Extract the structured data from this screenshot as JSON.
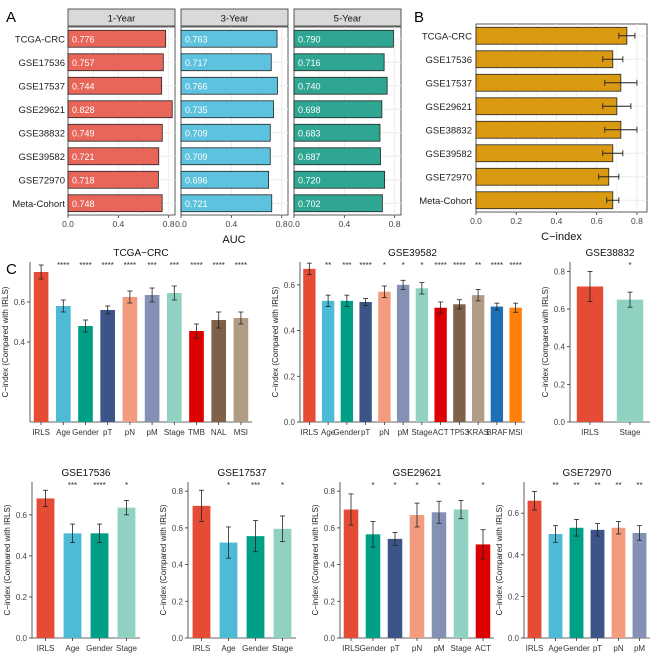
{
  "panels": {
    "A": "A",
    "B": "B",
    "C": "C"
  },
  "colors": {
    "a_1y": "#E8655A",
    "a_3y": "#5DC2DD",
    "a_5y": "#2EA692",
    "b_bar": "#D99A12",
    "c_sig": "#333333"
  },
  "chart_data": [
    {
      "id": "A",
      "type": "bar",
      "orientation": "horizontal",
      "categories": [
        "TCGA-CRC",
        "GSE17536",
        "GSE17537",
        "GSE29621",
        "GSE38832",
        "GSE39582",
        "GSE72970",
        "Meta-Cohort"
      ],
      "xlabel": "AUC",
      "xlim": [
        0,
        0.85
      ],
      "xticks": [
        "0.0",
        "0.4",
        "0.8"
      ],
      "grid": true,
      "facets": [
        {
          "name": "1-Year",
          "values": [
            "0.776",
            "0.757",
            "0.744",
            "0.828",
            "0.749",
            "0.721",
            "0.718",
            "0.748"
          ]
        },
        {
          "name": "3-Year",
          "values": [
            "0.763",
            "0.717",
            "0.766",
            "0.735",
            "0.709",
            "0.709",
            "0.696",
            "0.721"
          ]
        },
        {
          "name": "5-Year",
          "values": [
            "0.790",
            "0.716",
            "0.740",
            "0.698",
            "0.683",
            "0.687",
            "0.720",
            "0.702"
          ]
        }
      ]
    },
    {
      "id": "B",
      "type": "bar",
      "orientation": "horizontal",
      "categories": [
        "TCGA-CRC",
        "GSE17536",
        "GSE17537",
        "GSE29621",
        "GSE38832",
        "GSE39582",
        "GSE72970",
        "Meta-Cohort"
      ],
      "values": [
        0.75,
        0.68,
        0.72,
        0.7,
        0.72,
        0.68,
        0.66,
        0.68
      ],
      "errors": [
        0.04,
        0.05,
        0.08,
        0.07,
        0.08,
        0.05,
        0.05,
        0.03
      ],
      "xlabel": "C−index",
      "xlim": [
        0,
        0.85
      ],
      "xticks": [
        "0.0",
        "0.2",
        "0.4",
        "0.6",
        "0.8"
      ],
      "grid": true
    },
    {
      "id": "C",
      "type": "bar",
      "ylabel": "C−index (Compared with IRLS)",
      "palette": {
        "IRLS": "#E64B35",
        "Age": "#4DBBD5",
        "Gender": "#00A087",
        "pT": "#3C5488",
        "pN": "#F39B7F",
        "pM": "#8491B4",
        "Stage": "#91D1C2",
        "TMB": "#DC0000",
        "NAL": "#7E6148",
        "MSI": "#B09C85",
        "ACT": "#DC0000",
        "TP53": "#7E6148",
        "KRAS": "#B09C85",
        "BRAF": "#1F6FB4"
      },
      "msi_alt_color": "#FF7F0E",
      "plots": [
        {
          "title": "TCGA−CRC",
          "ylim": [
            0,
            0.8
          ],
          "yticks": [
            "0.4",
            "0.6"
          ],
          "categories": [
            "IRLS",
            "Age",
            "Gender",
            "pT",
            "pN",
            "pM",
            "Stage",
            "TMB",
            "NAL",
            "MSI"
          ],
          "values": [
            0.75,
            0.58,
            0.48,
            0.56,
            0.625,
            0.635,
            0.645,
            0.455,
            0.51,
            0.52
          ],
          "errors": [
            0.035,
            0.03,
            0.03,
            0.02,
            0.03,
            0.035,
            0.035,
            0.035,
            0.04,
            0.03
          ],
          "sig": [
            "",
            "****",
            "****",
            "****",
            "****",
            "***",
            "***",
            "****",
            "****",
            "****"
          ]
        },
        {
          "title": "GSE39582",
          "ylim": [
            0,
            0.7
          ],
          "yticks": [
            "0.0",
            "0.2",
            "0.4",
            "0.6"
          ],
          "categories": [
            "IRLS",
            "Age",
            "Gender",
            "pT",
            "pN",
            "pM",
            "Stage",
            "ACT",
            "TP53",
            "KRAS",
            "BRAF",
            "MSI"
          ],
          "values": [
            0.67,
            0.53,
            0.53,
            0.525,
            0.57,
            0.6,
            0.585,
            0.5,
            0.515,
            0.555,
            0.505,
            0.5
          ],
          "errors": [
            0.025,
            0.025,
            0.025,
            0.015,
            0.025,
            0.02,
            0.025,
            0.025,
            0.02,
            0.025,
            0.015,
            0.02
          ],
          "sig": [
            "",
            "**",
            "***",
            "****",
            "*",
            "*",
            "*",
            "****",
            "****",
            "**",
            "****",
            "****"
          ]
        },
        {
          "title": "GSE38832",
          "ylim": [
            0,
            0.85
          ],
          "yticks": [
            "0.0",
            "0.2",
            "0.4",
            "0.6",
            "0.8"
          ],
          "categories": [
            "IRLS",
            "Stage"
          ],
          "values": [
            0.72,
            0.65
          ],
          "errors": [
            0.08,
            0.04
          ],
          "sig": [
            "",
            "*"
          ]
        },
        {
          "title": "GSE17536",
          "ylim": [
            0,
            0.76
          ],
          "yticks": [
            "0.0",
            "0.2",
            "0.4",
            "0.6"
          ],
          "categories": [
            "IRLS",
            "Age",
            "Gender",
            "Stage"
          ],
          "values": [
            0.68,
            0.51,
            0.51,
            0.635
          ],
          "errors": [
            0.04,
            0.045,
            0.045,
            0.035
          ],
          "sig": [
            "",
            "***",
            "****",
            "*"
          ]
        },
        {
          "title": "GSE17537",
          "ylim": [
            0,
            0.85
          ],
          "yticks": [
            "0.0",
            "0.2",
            "0.4",
            "0.6",
            "0.8"
          ],
          "categories": [
            "IRLS",
            "Age",
            "Gender",
            "Stage"
          ],
          "values": [
            0.72,
            0.52,
            0.555,
            0.595
          ],
          "errors": [
            0.085,
            0.085,
            0.085,
            0.07
          ],
          "sig": [
            "",
            "*",
            "***",
            "*"
          ]
        },
        {
          "title": "GSE29621",
          "ylim": [
            0,
            0.85
          ],
          "yticks": [
            "0.0",
            "0.2",
            "0.4",
            "0.6",
            "0.8"
          ],
          "categories": [
            "IRLS",
            "Gender",
            "pT",
            "pN",
            "pM",
            "Stage",
            "ACT"
          ],
          "values": [
            0.7,
            0.565,
            0.54,
            0.67,
            0.685,
            0.7,
            0.51
          ],
          "errors": [
            0.085,
            0.07,
            0.035,
            0.065,
            0.06,
            0.05,
            0.08
          ],
          "sig": [
            "",
            "*",
            "*",
            "*",
            "*",
            "",
            "*"
          ]
        },
        {
          "title": "GSE72970",
          "ylim": [
            0,
            0.75
          ],
          "yticks": [
            "0.0",
            "0.2",
            "0.4",
            "0.6"
          ],
          "categories": [
            "IRLS",
            "Age",
            "Gender",
            "pT",
            "pN",
            "pM"
          ],
          "values": [
            0.66,
            0.5,
            0.53,
            0.52,
            0.53,
            0.505
          ],
          "errors": [
            0.045,
            0.04,
            0.04,
            0.03,
            0.03,
            0.035
          ],
          "sig": [
            "",
            "**",
            "**",
            "**",
            "**",
            "**"
          ]
        }
      ]
    }
  ]
}
